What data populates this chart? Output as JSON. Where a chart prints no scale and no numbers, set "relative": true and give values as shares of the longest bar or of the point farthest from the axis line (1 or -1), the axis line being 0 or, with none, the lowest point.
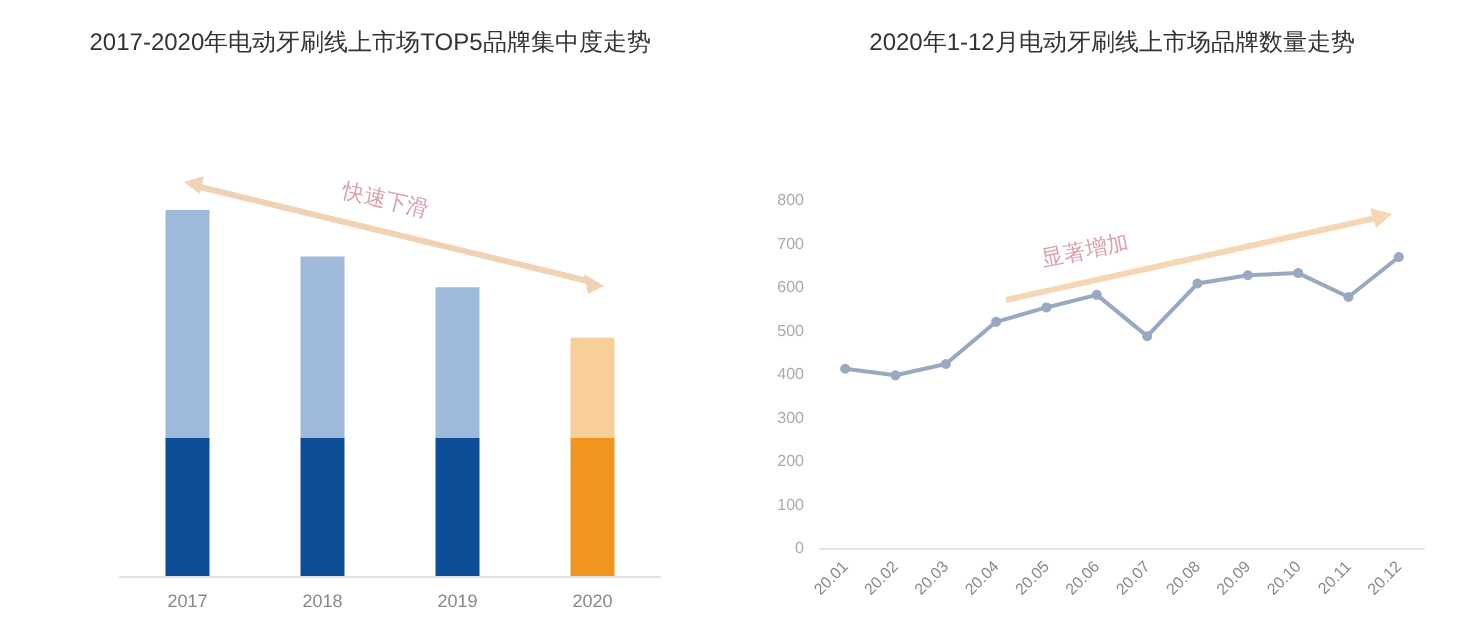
{
  "chart_data": [
    {
      "type": "bar",
      "title": "2017-2020年电动牙刷线上市场TOP5品牌集中度走势",
      "categories": [
        "2017",
        "2018",
        "2019",
        "2020"
      ],
      "stacked": true,
      "relative": true,
      "grid": false,
      "series": [
        {
          "colors": [
            "#0d4f96",
            "#0d4f96",
            "#0d4f96",
            "#f0961e"
          ],
          "values": [
            0.377,
            0.377,
            0.377,
            0.377
          ]
        },
        {
          "colors": [
            "#9dbadb",
            "#9dbadb",
            "#9dbadb",
            "#f8cf9a"
          ],
          "values": [
            0.623,
            0.496,
            0.412,
            0.274
          ]
        }
      ],
      "annotations": [
        "快速下滑"
      ]
    },
    {
      "type": "line",
      "title": "2020年1-12月电动牙刷线上市场品牌数量走势",
      "categories": [
        "20.01",
        "20.02",
        "20.03",
        "20.04",
        "20.05",
        "20.06",
        "20.07",
        "20.08",
        "20.09",
        "20.10",
        "20.11",
        "20.12"
      ],
      "ylim": [
        0,
        800
      ],
      "yticks": [
        0,
        100,
        200,
        300,
        400,
        500,
        600,
        700,
        800
      ],
      "grid": false,
      "marker": "circle",
      "line_style": "solid",
      "series": [
        {
          "color": "#98a9c0",
          "values": [
            412,
            397,
            423,
            520,
            553,
            582,
            487,
            608,
            627,
            632,
            577,
            669
          ]
        }
      ],
      "annotations": [
        "显著增加"
      ]
    }
  ]
}
